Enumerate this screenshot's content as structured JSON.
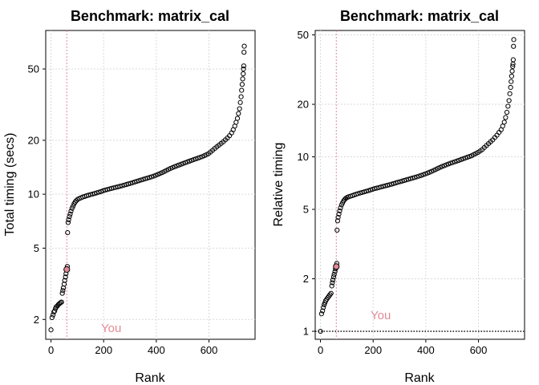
{
  "chart_data": [
    {
      "type": "scatter",
      "title": "Benchmark: matrix_cal",
      "xlabel": "Rank",
      "ylabel": "Total timing (secs)",
      "y_scale": "log",
      "xlim": [
        -20,
        775
      ],
      "ylim": [
        1.55,
        82
      ],
      "xticks": [
        0,
        200,
        400,
        600
      ],
      "yticks": [
        2,
        5,
        10,
        20,
        50
      ],
      "grid": true,
      "highlight": {
        "label": "You",
        "rank": 60,
        "value": 3.8,
        "color": "#e08a96"
      },
      "reference_line": null,
      "points": [
        [
          0,
          1.75
        ],
        [
          4,
          2.05
        ],
        [
          8,
          2.12
        ],
        [
          11,
          2.2
        ],
        [
          14,
          2.23
        ],
        [
          17,
          2.3
        ],
        [
          20,
          2.35
        ],
        [
          24,
          2.38
        ],
        [
          28,
          2.42
        ],
        [
          32,
          2.45
        ],
        [
          36,
          2.48
        ],
        [
          40,
          2.5
        ],
        [
          43,
          2.8
        ],
        [
          45,
          2.9
        ],
        [
          47,
          3.0
        ],
        [
          50,
          3.15
        ],
        [
          52,
          3.3
        ],
        [
          55,
          3.45
        ],
        [
          57,
          3.6
        ],
        [
          60,
          3.8
        ],
        [
          62,
          3.95
        ],
        [
          63,
          6.1
        ],
        [
          65,
          6.95
        ],
        [
          67,
          7.2
        ],
        [
          70,
          7.5
        ],
        [
          73,
          7.75
        ],
        [
          76,
          8.05
        ],
        [
          80,
          8.35
        ],
        [
          84,
          8.6
        ],
        [
          88,
          8.85
        ],
        [
          92,
          9.05
        ],
        [
          96,
          9.2
        ],
        [
          101,
          9.35
        ],
        [
          107,
          9.45
        ],
        [
          114,
          9.55
        ],
        [
          121,
          9.65
        ],
        [
          128,
          9.72
        ],
        [
          135,
          9.8
        ],
        [
          142,
          9.87
        ],
        [
          150,
          9.95
        ],
        [
          158,
          10.02
        ],
        [
          166,
          10.1
        ],
        [
          174,
          10.18
        ],
        [
          182,
          10.27
        ],
        [
          190,
          10.35
        ],
        [
          198,
          10.45
        ],
        [
          206,
          10.55
        ],
        [
          214,
          10.62
        ],
        [
          222,
          10.7
        ],
        [
          230,
          10.78
        ],
        [
          238,
          10.85
        ],
        [
          246,
          10.92
        ],
        [
          254,
          11.0
        ],
        [
          262,
          11.07
        ],
        [
          270,
          11.15
        ],
        [
          278,
          11.24
        ],
        [
          286,
          11.33
        ],
        [
          294,
          11.42
        ],
        [
          302,
          11.5
        ],
        [
          310,
          11.6
        ],
        [
          318,
          11.7
        ],
        [
          326,
          11.8
        ],
        [
          334,
          11.9
        ],
        [
          342,
          12.0
        ],
        [
          350,
          12.1
        ],
        [
          358,
          12.2
        ],
        [
          366,
          12.3
        ],
        [
          374,
          12.4
        ],
        [
          382,
          12.5
        ],
        [
          390,
          12.62
        ],
        [
          398,
          12.75
        ],
        [
          406,
          12.9
        ],
        [
          414,
          13.05
        ],
        [
          422,
          13.2
        ],
        [
          430,
          13.38
        ],
        [
          438,
          13.56
        ],
        [
          446,
          13.75
        ],
        [
          454,
          13.93
        ],
        [
          462,
          14.1
        ],
        [
          470,
          14.25
        ],
        [
          478,
          14.4
        ],
        [
          486,
          14.55
        ],
        [
          494,
          14.7
        ],
        [
          502,
          14.85
        ],
        [
          510,
          15.0
        ],
        [
          518,
          15.15
        ],
        [
          526,
          15.3
        ],
        [
          534,
          15.45
        ],
        [
          542,
          15.6
        ],
        [
          550,
          15.75
        ],
        [
          558,
          15.9
        ],
        [
          566,
          16.05
        ],
        [
          574,
          16.2
        ],
        [
          582,
          16.4
        ],
        [
          590,
          16.6
        ],
        [
          598,
          16.85
        ],
        [
          606,
          17.2
        ],
        [
          614,
          17.6
        ],
        [
          622,
          18.0
        ],
        [
          630,
          18.4
        ],
        [
          638,
          18.8
        ],
        [
          646,
          19.2
        ],
        [
          654,
          19.6
        ],
        [
          662,
          20.1
        ],
        [
          670,
          20.6
        ],
        [
          678,
          21.2
        ],
        [
          686,
          22.0
        ],
        [
          692,
          22.9
        ],
        [
          698,
          24.0
        ],
        [
          703,
          25.2
        ],
        [
          708,
          26.5
        ],
        [
          712,
          28.2
        ],
        [
          716,
          30.0
        ],
        [
          719,
          32.5
        ],
        [
          722,
          35.0
        ],
        [
          724,
          38.0
        ],
        [
          726,
          41.0
        ],
        [
          728,
          44.0
        ],
        [
          730,
          47.0
        ],
        [
          731,
          50.0
        ],
        [
          732,
          52.0
        ],
        [
          733,
          62.0
        ],
        [
          734,
          67.0
        ]
      ]
    },
    {
      "type": "scatter",
      "title": "Benchmark: matrix_cal",
      "xlabel": "Rank",
      "ylabel": "Relative timing",
      "y_scale": "log",
      "xlim": [
        -20,
        775
      ],
      "ylim": [
        0.9,
        53
      ],
      "xticks": [
        0,
        200,
        400,
        600
      ],
      "yticks": [
        1,
        2,
        5,
        10,
        20,
        50
      ],
      "grid": true,
      "highlight": {
        "label": "You",
        "rank": 60,
        "value": 2.35,
        "color": "#e08a96"
      },
      "reference_line": {
        "y": 1,
        "style": "dotted"
      },
      "points": [
        [
          0,
          1.0
        ],
        [
          4,
          1.26
        ],
        [
          8,
          1.31
        ],
        [
          11,
          1.37
        ],
        [
          14,
          1.42
        ],
        [
          17,
          1.46
        ],
        [
          20,
          1.5
        ],
        [
          24,
          1.53
        ],
        [
          28,
          1.56
        ],
        [
          32,
          1.59
        ],
        [
          36,
          1.62
        ],
        [
          40,
          1.65
        ],
        [
          43,
          1.82
        ],
        [
          45,
          1.9
        ],
        [
          47,
          1.97
        ],
        [
          50,
          2.05
        ],
        [
          52,
          2.12
        ],
        [
          55,
          2.2
        ],
        [
          57,
          2.28
        ],
        [
          60,
          2.35
        ],
        [
          62,
          2.45
        ],
        [
          63,
          3.8
        ],
        [
          65,
          4.3
        ],
        [
          67,
          4.5
        ],
        [
          70,
          4.7
        ],
        [
          73,
          4.9
        ],
        [
          76,
          5.1
        ],
        [
          80,
          5.3
        ],
        [
          84,
          5.45
        ],
        [
          88,
          5.6
        ],
        [
          92,
          5.7
        ],
        [
          96,
          5.78
        ],
        [
          101,
          5.85
        ],
        [
          107,
          5.9
        ],
        [
          114,
          5.95
        ],
        [
          121,
          6.0
        ],
        [
          128,
          6.05
        ],
        [
          135,
          6.1
        ],
        [
          142,
          6.15
        ],
        [
          150,
          6.2
        ],
        [
          158,
          6.25
        ],
        [
          166,
          6.3
        ],
        [
          174,
          6.35
        ],
        [
          182,
          6.4
        ],
        [
          190,
          6.46
        ],
        [
          198,
          6.52
        ],
        [
          206,
          6.58
        ],
        [
          214,
          6.62
        ],
        [
          222,
          6.67
        ],
        [
          230,
          6.72
        ],
        [
          238,
          6.77
        ],
        [
          246,
          6.82
        ],
        [
          254,
          6.87
        ],
        [
          262,
          6.92
        ],
        [
          270,
          6.97
        ],
        [
          278,
          7.03
        ],
        [
          286,
          7.09
        ],
        [
          294,
          7.15
        ],
        [
          302,
          7.2
        ],
        [
          310,
          7.26
        ],
        [
          318,
          7.32
        ],
        [
          326,
          7.38
        ],
        [
          334,
          7.44
        ],
        [
          342,
          7.5
        ],
        [
          350,
          7.56
        ],
        [
          358,
          7.62
        ],
        [
          366,
          7.68
        ],
        [
          374,
          7.75
        ],
        [
          382,
          7.82
        ],
        [
          390,
          7.9
        ],
        [
          398,
          7.98
        ],
        [
          406,
          8.07
        ],
        [
          414,
          8.16
        ],
        [
          422,
          8.25
        ],
        [
          430,
          8.36
        ],
        [
          438,
          8.47
        ],
        [
          446,
          8.59
        ],
        [
          454,
          8.7
        ],
        [
          462,
          8.81
        ],
        [
          470,
          8.9
        ],
        [
          478,
          9.0
        ],
        [
          486,
          9.1
        ],
        [
          494,
          9.2
        ],
        [
          502,
          9.28
        ],
        [
          510,
          9.37
        ],
        [
          518,
          9.46
        ],
        [
          526,
          9.55
        ],
        [
          534,
          9.65
        ],
        [
          542,
          9.75
        ],
        [
          550,
          9.85
        ],
        [
          558,
          9.95
        ],
        [
          566,
          10.05
        ],
        [
          574,
          10.15
        ],
        [
          582,
          10.3
        ],
        [
          590,
          10.45
        ],
        [
          598,
          10.6
        ],
        [
          606,
          10.8
        ],
        [
          614,
          11.0
        ],
        [
          622,
          11.3
        ],
        [
          630,
          11.6
        ],
        [
          638,
          11.9
        ],
        [
          646,
          12.2
        ],
        [
          654,
          12.5
        ],
        [
          662,
          12.9
        ],
        [
          670,
          13.3
        ],
        [
          678,
          13.8
        ],
        [
          686,
          14.3
        ],
        [
          692,
          15.0
        ],
        [
          698,
          15.8
        ],
        [
          703,
          16.8
        ],
        [
          708,
          18.0
        ],
        [
          712,
          19.5
        ],
        [
          716,
          21.0
        ],
        [
          719,
          23.0
        ],
        [
          722,
          25.0
        ],
        [
          724,
          27.0
        ],
        [
          726,
          29.0
        ],
        [
          728,
          31.0
        ],
        [
          730,
          33.0
        ],
        [
          731,
          34.0
        ],
        [
          732,
          36.0
        ],
        [
          733,
          43.0
        ],
        [
          734,
          47.0
        ]
      ]
    }
  ]
}
